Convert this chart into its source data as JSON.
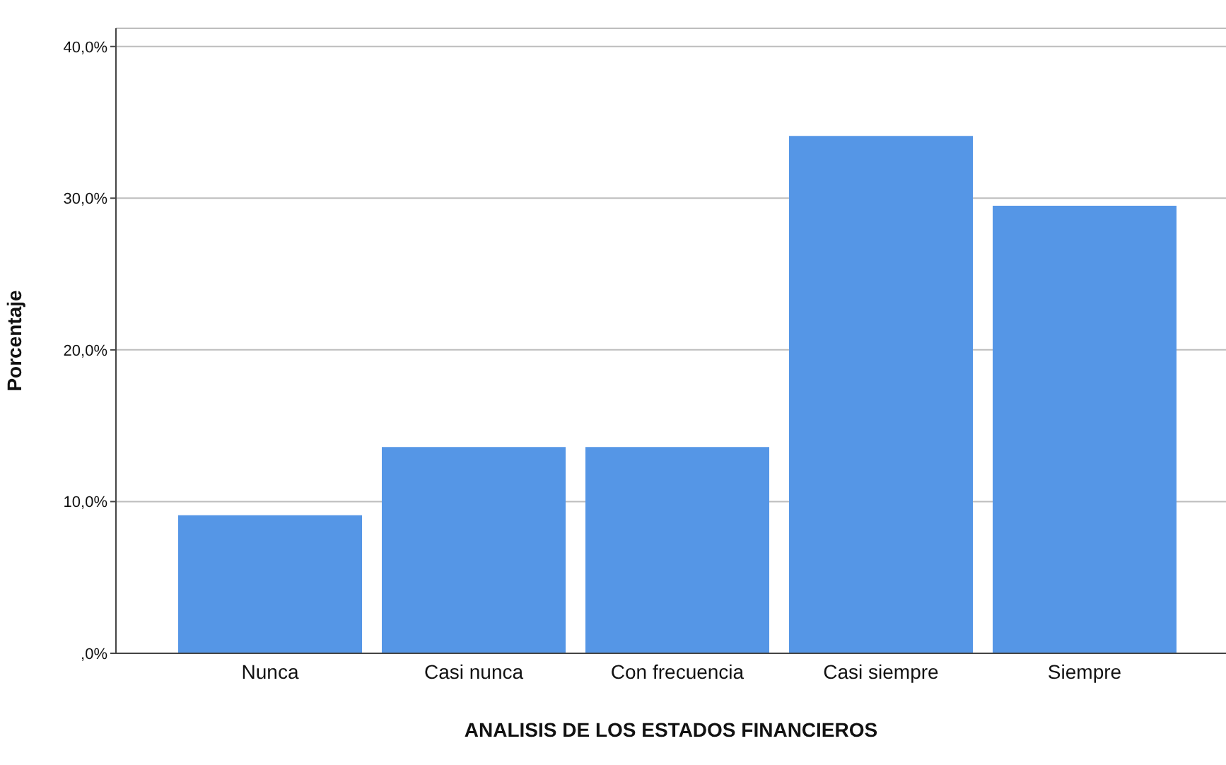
{
  "chart_data": {
    "type": "bar",
    "xlabel": "ANALISIS DE LOS ESTADOS FINANCIEROS",
    "ylabel": "Porcentaje",
    "categories": [
      "Nunca",
      "Casi nunca",
      "Con frecuencia",
      "Casi siempre",
      "Siempre"
    ],
    "values": [
      9.1,
      13.6,
      13.6,
      34.1,
      29.5
    ],
    "color": "#5596e6",
    "ylim": [
      0,
      41.2
    ],
    "yticks": [
      {
        "value": 0,
        "label": ",0%"
      },
      {
        "value": 10,
        "label": "10,0%"
      },
      {
        "value": 20,
        "label": "20,0%"
      },
      {
        "value": 30,
        "label": "30,0%"
      },
      {
        "value": 40,
        "label": "40,0%"
      }
    ],
    "grid": "y",
    "legend": false
  }
}
